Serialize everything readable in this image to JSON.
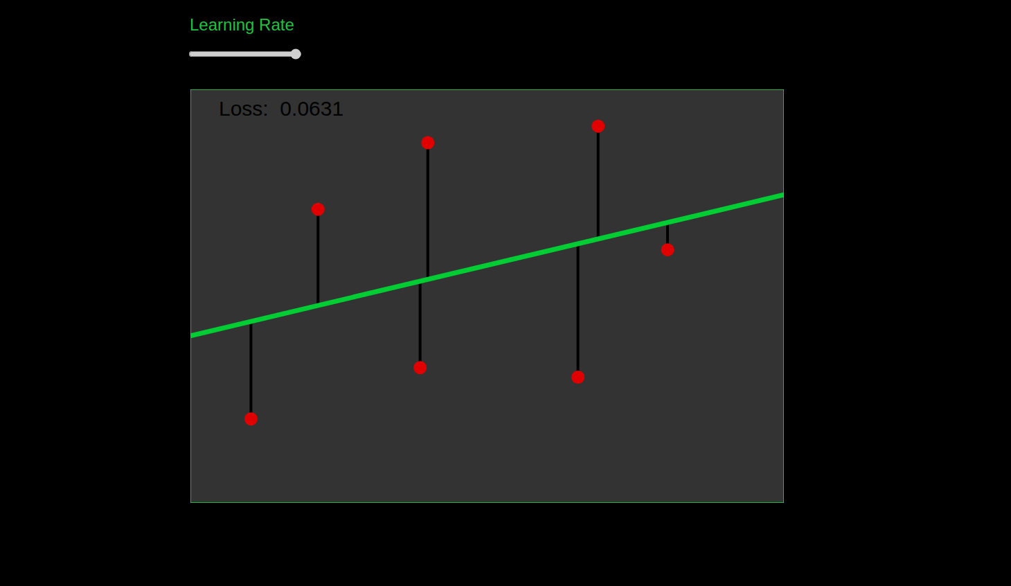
{
  "chart_data": {
    "type": "scatter",
    "x": [
      0.102,
      0.215,
      0.4,
      0.387,
      0.653,
      0.687,
      0.804
    ],
    "values": [
      0.203,
      0.71,
      0.871,
      0.327,
      0.304,
      0.911,
      0.612
    ],
    "color": "#e00000",
    "marker": "circle",
    "fit": {
      "x": [
        0,
        1
      ],
      "values": [
        0.404,
        0.745
      ],
      "color": "#00cc33"
    },
    "residual_color": "#000000",
    "xlim": [
      0,
      1
    ],
    "ylim": [
      0,
      1
    ],
    "grid": false,
    "tick_labels": false,
    "annotations": [
      {
        "text": "Loss:  0.0631"
      }
    ],
    "slider": {
      "label": "Learning Rate",
      "value": 0.99,
      "min": 0,
      "max": 1
    }
  }
}
